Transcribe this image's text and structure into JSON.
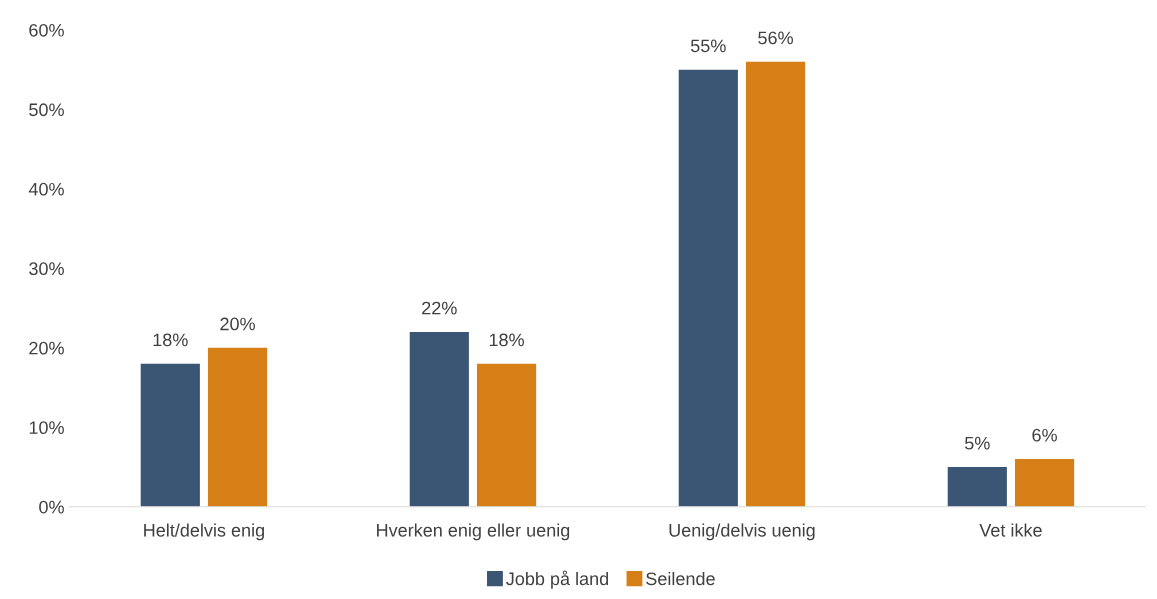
{
  "chart_data": {
    "type": "bar",
    "categories": [
      "Helt/delvis enig",
      "Hverken enig eller uenig",
      "Uenig/delvis uenig",
      "Vet ikke"
    ],
    "series": [
      {
        "name": "Jobb på land",
        "color": "#3a5674",
        "values": [
          18,
          22,
          55,
          5
        ]
      },
      {
        "name": "Seilende",
        "color": "#d67f16",
        "values": [
          20,
          18,
          56,
          6
        ]
      }
    ],
    "ylim": [
      0,
      60
    ],
    "yticks": [
      {
        "value": 0,
        "label": "0%"
      },
      {
        "value": 10,
        "label": "10%"
      },
      {
        "value": 20,
        "label": "20%"
      },
      {
        "value": 30,
        "label": "30%"
      },
      {
        "value": 40,
        "label": "40%"
      },
      {
        "value": 50,
        "label": "50%"
      },
      {
        "value": 60,
        "label": "60%"
      }
    ],
    "value_labels": [
      [
        "18%",
        "22%",
        "55%",
        "5%"
      ],
      [
        "20%",
        "18%",
        "56%",
        "6%"
      ]
    ],
    "grid": false,
    "legend": "bottom"
  }
}
